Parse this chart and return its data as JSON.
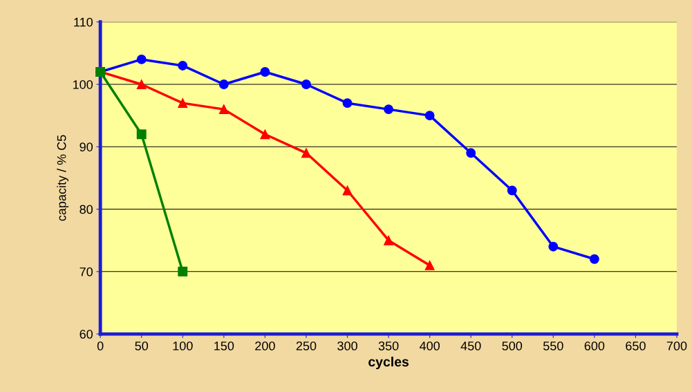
{
  "chart_data": {
    "type": "line",
    "xlabel": "cycles",
    "ylabel": "capacity / % C5",
    "series": [
      {
        "color": "#0000ff",
        "marker": "circle",
        "x": [
          0,
          50,
          100,
          150,
          200,
          250,
          300,
          350,
          400,
          450,
          500,
          550,
          600
        ],
        "values": [
          102,
          104,
          103,
          100,
          102,
          100,
          97,
          96,
          95,
          89,
          83,
          74,
          72
        ]
      },
      {
        "color": "#ff0000",
        "marker": "triangle",
        "x": [
          0,
          50,
          100,
          150,
          200,
          250,
          300,
          350,
          400
        ],
        "values": [
          102,
          100,
          97,
          96,
          92,
          89,
          83,
          75,
          71
        ]
      },
      {
        "color": "#008000",
        "marker": "square",
        "x": [
          0,
          50,
          100
        ],
        "values": [
          102,
          92,
          70
        ]
      }
    ],
    "xlim": [
      0,
      700
    ],
    "xticks": [
      0,
      50,
      100,
      150,
      200,
      250,
      300,
      350,
      400,
      450,
      500,
      550,
      600,
      650,
      700
    ],
    "ylim": [
      60,
      110
    ],
    "yticks": [
      60,
      70,
      80,
      90,
      100,
      110
    ],
    "grid": "y"
  }
}
